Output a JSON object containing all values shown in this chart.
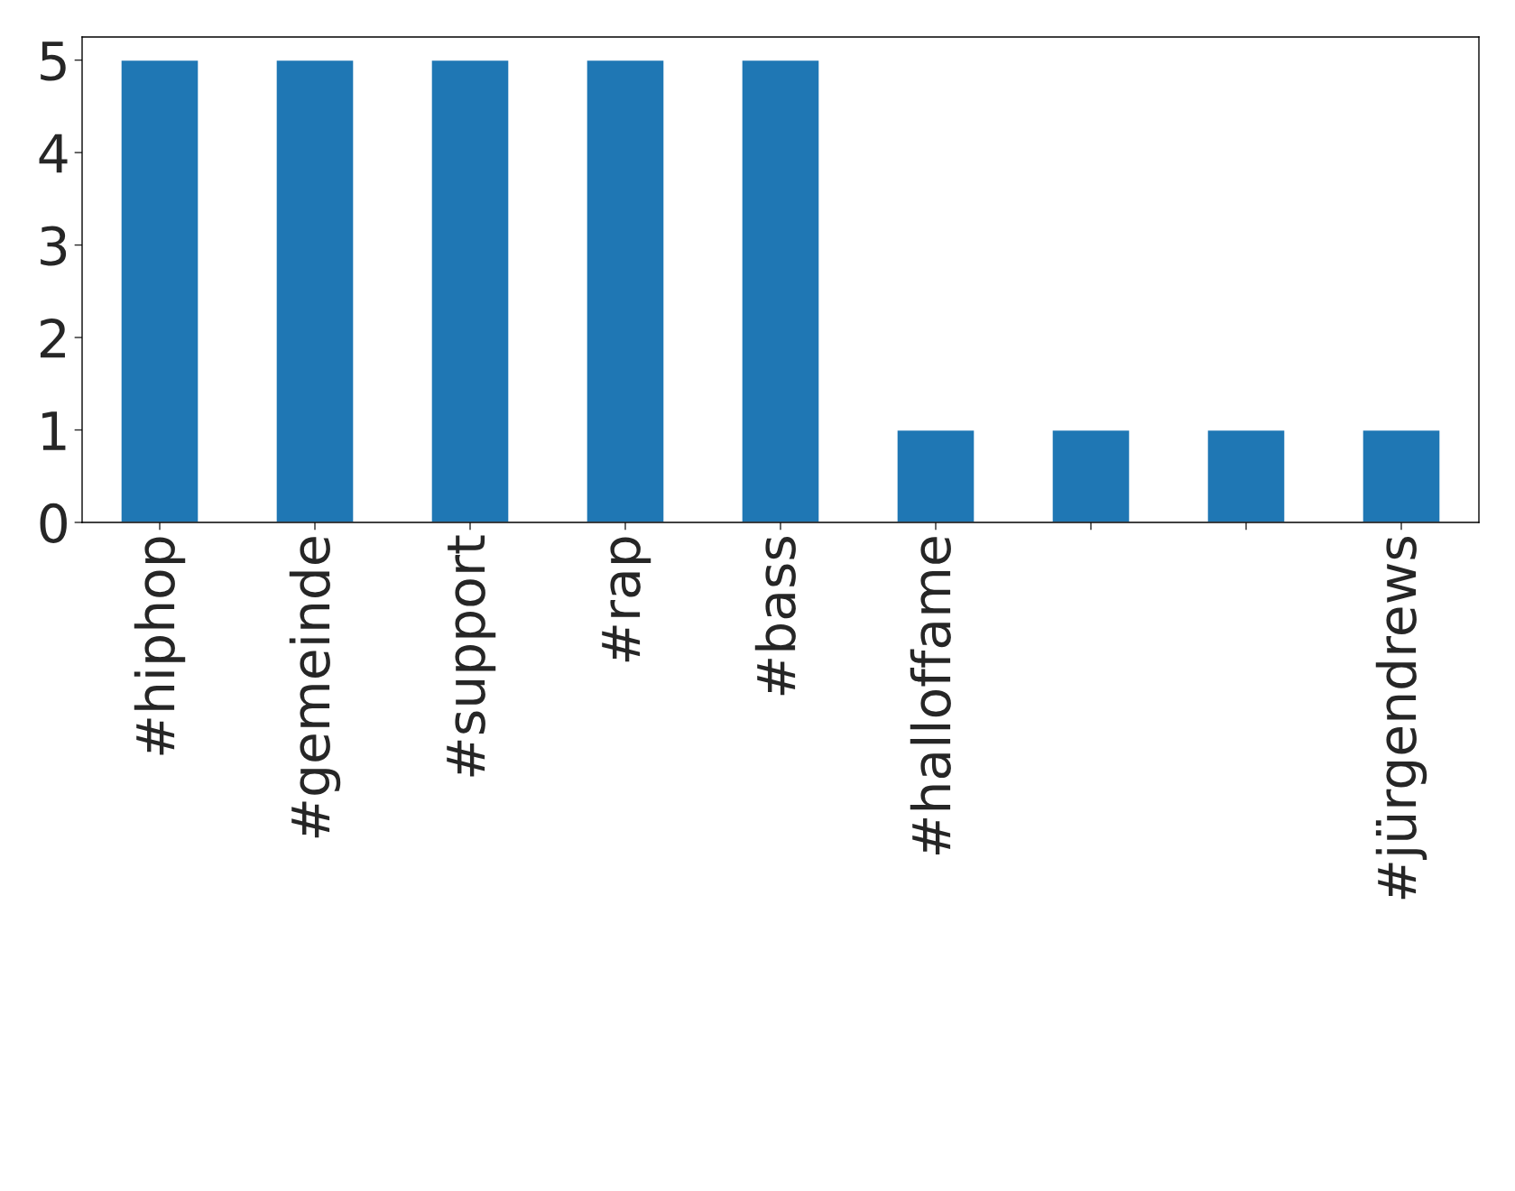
{
  "chart_data": {
    "type": "bar",
    "categories": [
      "#hiphop",
      "#gemeinde",
      "#support",
      "#rap",
      "#bass",
      "#halloffame",
      null,
      null,
      "#jürgendrews"
    ],
    "values": [
      5,
      5,
      5,
      5,
      5,
      1,
      1,
      1,
      1
    ],
    "color": "#1f77b4",
    "ylim": [
      0,
      5.25
    ],
    "yticks": [
      0,
      1,
      2,
      3,
      4,
      5
    ],
    "grid": false
  }
}
